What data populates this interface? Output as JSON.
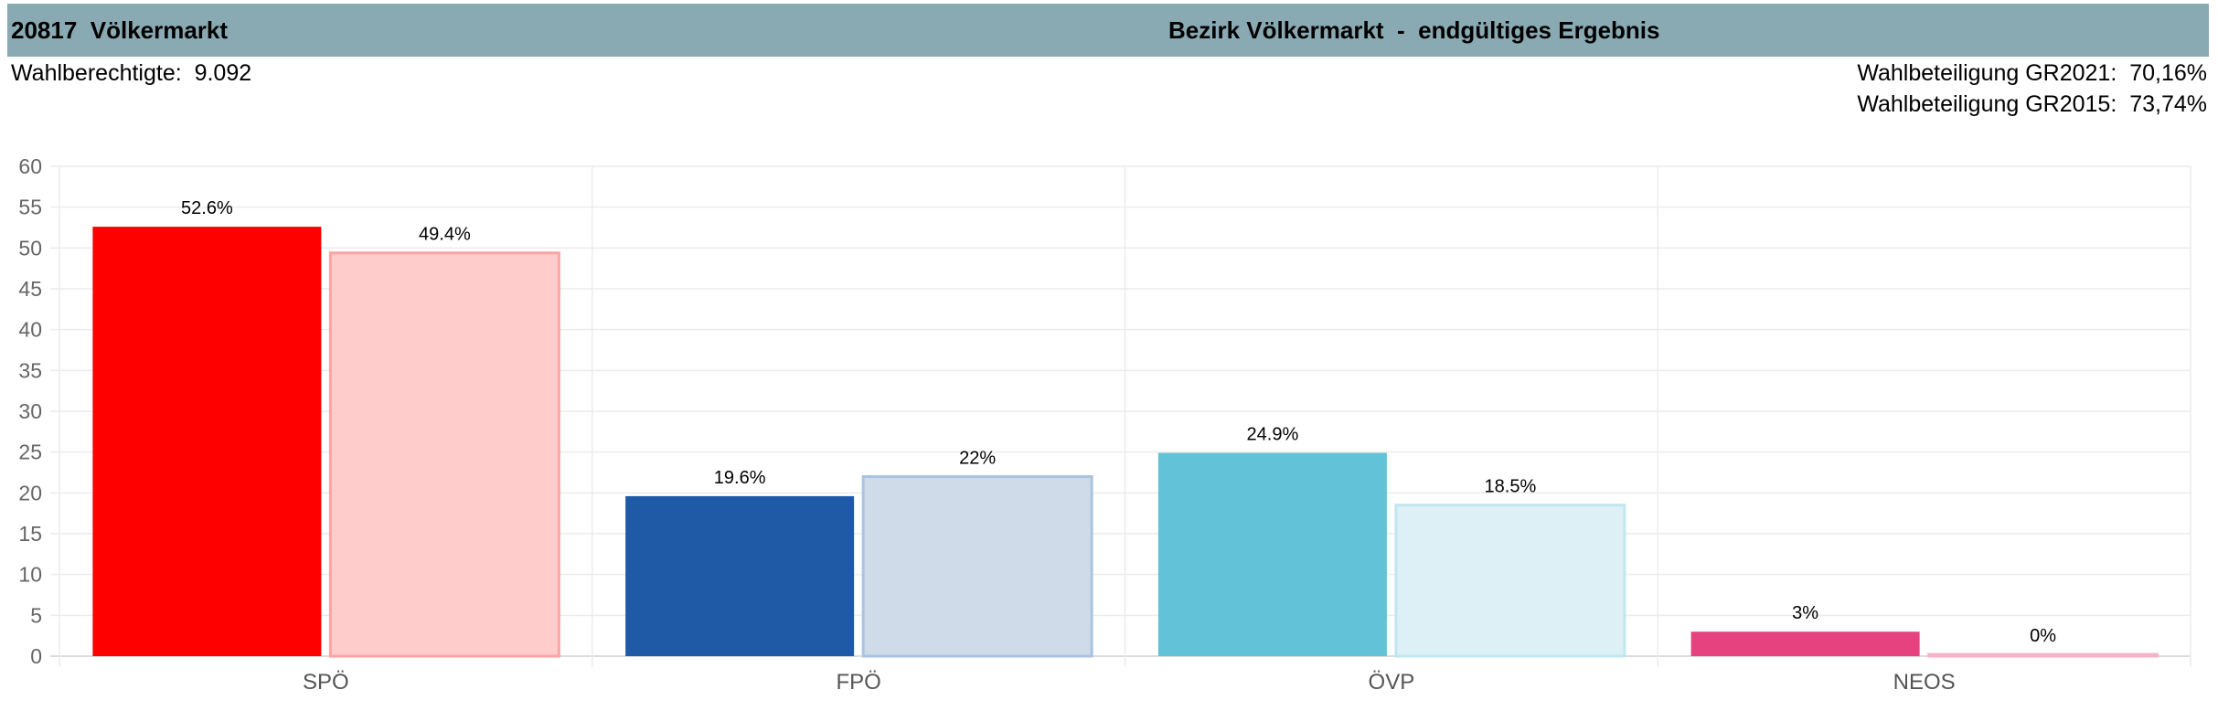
{
  "header": {
    "left_title": "20817  Völkermarkt",
    "center_title": "Bezirk Völkermarkt  -  endgültiges Ergebnis"
  },
  "info": {
    "voters_label": "Wahlberechtigte:",
    "voters_value": "9.092",
    "turnout_2021_label": "Wahlbeteiligung GR2021:",
    "turnout_2021_value": "70,16%",
    "turnout_2015_label": "Wahlbeteiligung GR2015:",
    "turnout_2015_value": "73,74%"
  },
  "chart_data": {
    "type": "bar",
    "title": "",
    "xlabel": "",
    "ylabel": "",
    "ylim": [
      0,
      60
    ],
    "ytick_step": 5,
    "grid": true,
    "categories": [
      "SPÖ",
      "FPÖ",
      "ÖVP",
      "NEOS"
    ],
    "series": [
      {
        "values": [
          52.6,
          19.6,
          24.9,
          3
        ],
        "labels": [
          "52.6%",
          "19.6%",
          "24.9%",
          "3%"
        ],
        "colors": [
          "#ff0000",
          "#1f5aa6",
          "#62c3d8",
          "#e6427f"
        ]
      },
      {
        "values": [
          49.4,
          22,
          18.5,
          0
        ],
        "labels": [
          "49.4%",
          "22%",
          "18.5%",
          "0%"
        ],
        "colors": [
          "#ffcccc",
          "#d0dbea",
          "#dcf0f5",
          "#fbd9e5"
        ],
        "borders": [
          "#ffa3a3",
          "#aac3de",
          "#c2e6ef",
          "#f5b3cb"
        ]
      }
    ]
  }
}
